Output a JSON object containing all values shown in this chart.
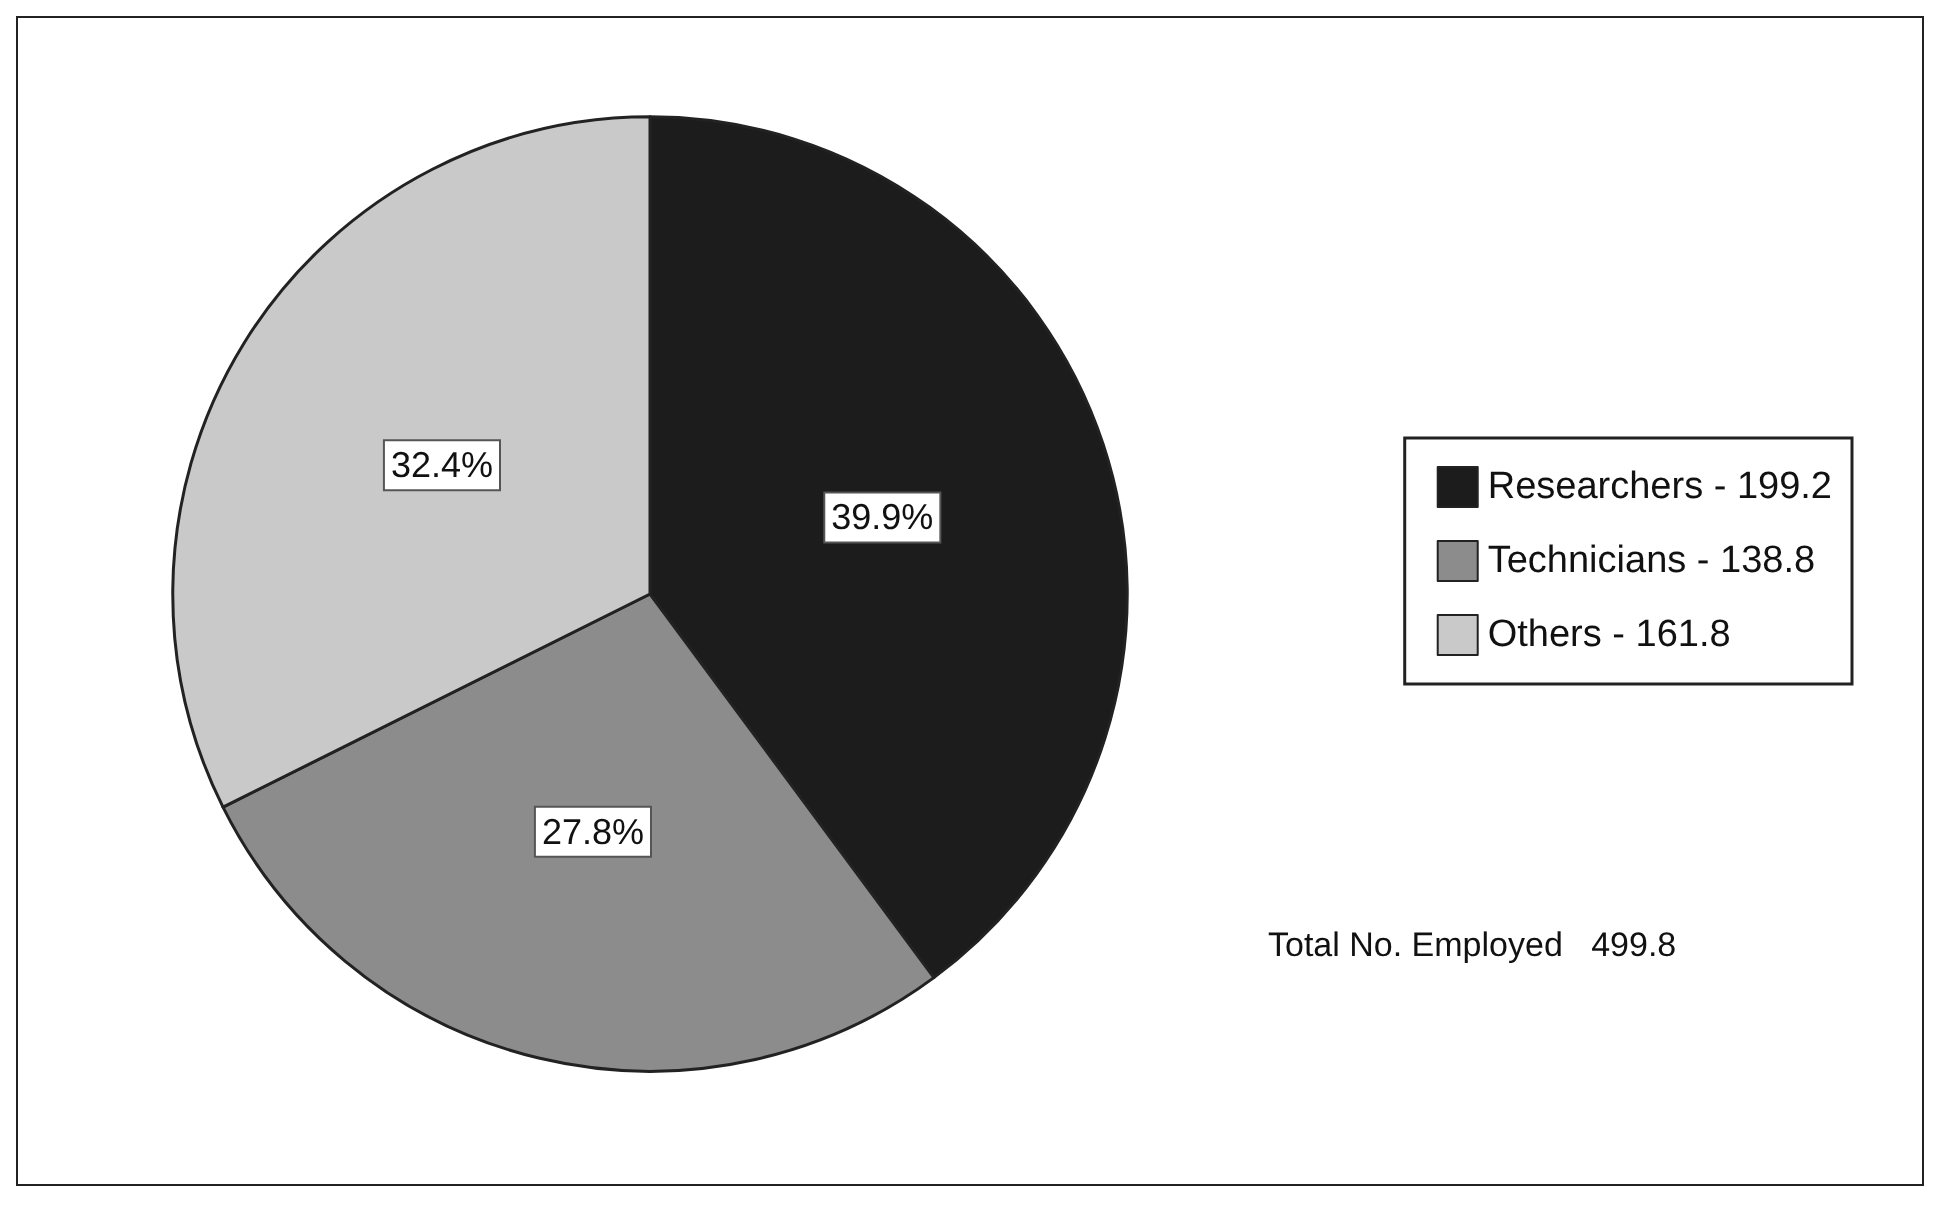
{
  "chart_data": {
    "type": "pie",
    "categories": [
      "Researchers - 199.2",
      "Technicians - 138.8",
      "Others - 161.8"
    ],
    "values": [
      39.9,
      27.8,
      32.4
    ],
    "colors": [
      "#1c1c1c",
      "#8c8c8c",
      "#c9c9c9"
    ],
    "value_labels": [
      "39.9%",
      "27.8%",
      "32.4%"
    ],
    "legend": "right",
    "annotations": [
      "Total No. Employed   499.8"
    ]
  }
}
